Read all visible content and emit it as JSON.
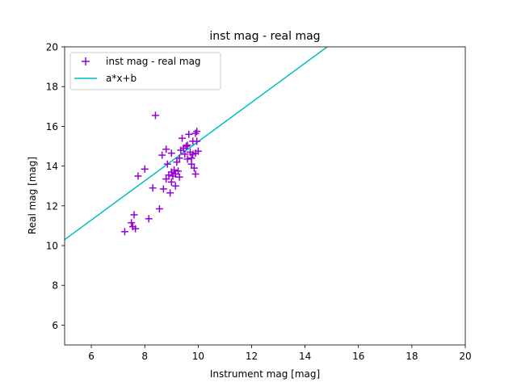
{
  "chart_data": {
    "type": "scatter",
    "title": "inst mag - real mag",
    "xlabel": "Instrument mag [mag]",
    "ylabel": "Real mag [mag]",
    "xlim": [
      5,
      20
    ],
    "ylim": [
      5,
      20
    ],
    "xticks": [
      "6",
      "8",
      "10",
      "12",
      "14",
      "16",
      "18",
      "20"
    ],
    "yticks": [
      "6",
      "8",
      "10",
      "12",
      "14",
      "16",
      "18",
      "20"
    ],
    "grid": false,
    "legend_position": "upper-left",
    "series": [
      {
        "name": "inst mag - real mag",
        "kind": "scatter",
        "marker": "+",
        "color": "#9400d3",
        "points": [
          [
            7.25,
            10.7
          ],
          [
            7.5,
            11.15
          ],
          [
            7.55,
            10.95
          ],
          [
            7.6,
            11.55
          ],
          [
            7.65,
            10.85
          ],
          [
            7.75,
            13.5
          ],
          [
            8.0,
            13.85
          ],
          [
            8.15,
            11.35
          ],
          [
            8.3,
            12.9
          ],
          [
            8.4,
            16.55
          ],
          [
            8.55,
            11.85
          ],
          [
            8.65,
            14.55
          ],
          [
            8.7,
            12.85
          ],
          [
            8.8,
            14.85
          ],
          [
            8.8,
            13.35
          ],
          [
            8.85,
            14.1
          ],
          [
            8.9,
            13.55
          ],
          [
            8.95,
            12.65
          ],
          [
            9.0,
            14.65
          ],
          [
            9.0,
            13.7
          ],
          [
            9.0,
            13.2
          ],
          [
            9.05,
            13.5
          ],
          [
            9.1,
            13.8
          ],
          [
            9.15,
            13.6
          ],
          [
            9.15,
            13.0
          ],
          [
            9.2,
            14.2
          ],
          [
            9.25,
            13.75
          ],
          [
            9.3,
            14.4
          ],
          [
            9.3,
            13.45
          ],
          [
            9.35,
            14.8
          ],
          [
            9.4,
            15.4
          ],
          [
            9.45,
            14.9
          ],
          [
            9.5,
            14.6
          ],
          [
            9.55,
            15.0
          ],
          [
            9.6,
            15.05
          ],
          [
            9.6,
            14.35
          ],
          [
            9.65,
            15.6
          ],
          [
            9.7,
            14.7
          ],
          [
            9.75,
            14.4
          ],
          [
            9.75,
            14.1
          ],
          [
            9.8,
            15.25
          ],
          [
            9.8,
            14.6
          ],
          [
            9.85,
            13.9
          ],
          [
            9.9,
            15.65
          ],
          [
            9.9,
            14.65
          ],
          [
            9.9,
            13.6
          ],
          [
            9.95,
            15.75
          ],
          [
            9.95,
            15.25
          ],
          [
            10.0,
            14.75
          ]
        ]
      },
      {
        "name": "a*x+b",
        "kind": "line",
        "color": "#00bfbf",
        "points": [
          [
            5.0,
            10.3
          ],
          [
            14.83,
            20.0
          ]
        ]
      }
    ]
  }
}
